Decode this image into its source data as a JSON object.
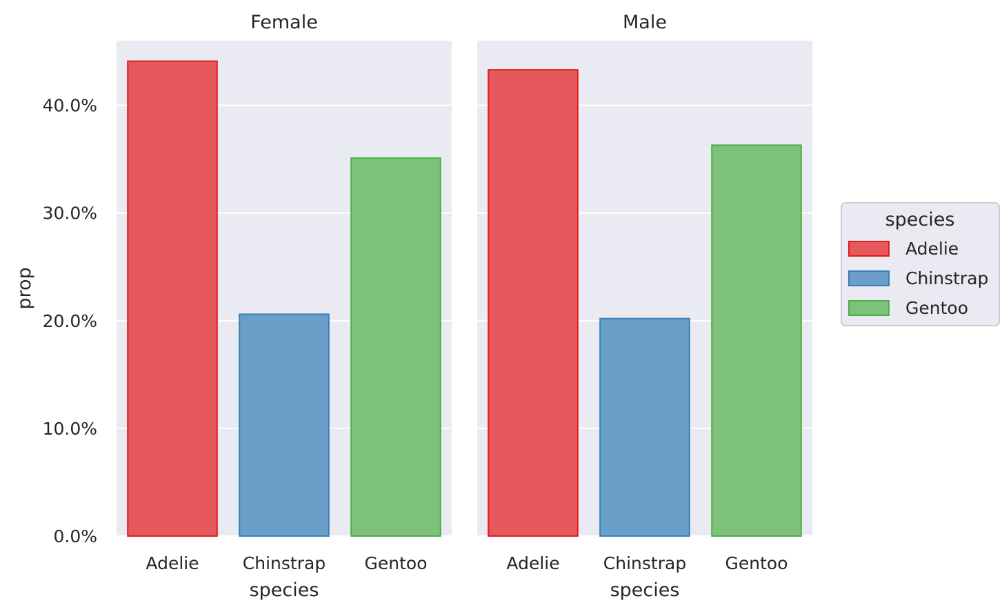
{
  "chart_data": {
    "type": "bar",
    "facets": [
      {
        "title": "Female",
        "categories": [
          "Adelie",
          "Chinstrap",
          "Gentoo"
        ],
        "values": [
          0.441,
          0.206,
          0.351
        ]
      },
      {
        "title": "Male",
        "categories": [
          "Adelie",
          "Chinstrap",
          "Gentoo"
        ],
        "values": [
          0.433,
          0.202,
          0.363
        ]
      }
    ],
    "xlabel": "species",
    "ylabel": "prop",
    "ylim": [
      0,
      0.46
    ],
    "yticks": [
      0.0,
      0.1,
      0.2,
      0.3,
      0.4
    ],
    "ytick_labels": [
      "0.0%",
      "10.0%",
      "20.0%",
      "30.0%",
      "40.0%"
    ],
    "grid": true,
    "legend": {
      "title": "species",
      "placement": "right",
      "entries": [
        "Adelie",
        "Chinstrap",
        "Gentoo"
      ]
    },
    "colors": {
      "Adelie": {
        "fill": "#e5585c",
        "edge": "#e41a1c"
      },
      "Chinstrap": {
        "fill": "#6b9ec8",
        "edge": "#377eb8"
      },
      "Gentoo": {
        "fill": "#7dc17b",
        "edge": "#4daf4a"
      }
    },
    "background": "#eaeaf2"
  }
}
